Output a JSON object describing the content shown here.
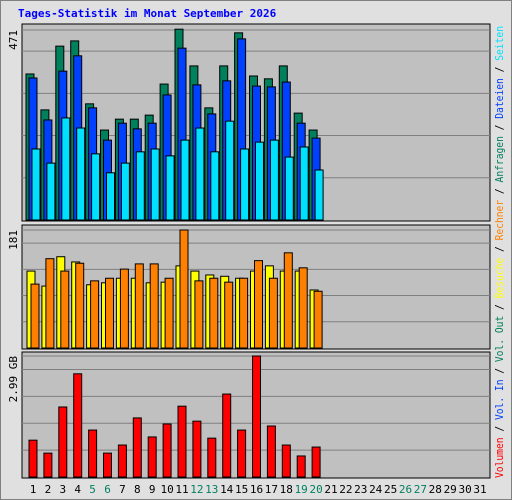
{
  "title": "Tages-Statistik im Monat September 2026",
  "categories": [
    "1",
    "2",
    "3",
    "4",
    "5",
    "6",
    "7",
    "8",
    "9",
    "10",
    "11",
    "12",
    "13",
    "14",
    "15",
    "16",
    "17",
    "18",
    "19",
    "20",
    "21",
    "22",
    "23",
    "24",
    "25",
    "26",
    "27",
    "28",
    "29",
    "30",
    "31"
  ],
  "weekends": [
    "5",
    "6",
    "12",
    "13",
    "19",
    "20",
    "26",
    "27"
  ],
  "weekend_color": "#008060",
  "separator": " / ",
  "chart_data": [
    {
      "type": "bar",
      "ylim": [
        0,
        471
      ],
      "yticks": [
        471
      ],
      "series": [
        {
          "name": "Anfragen",
          "color": "#00805c",
          "values": [
            362,
            273,
            431,
            444,
            288,
            223,
            250,
            250,
            260,
            337,
            473,
            382,
            278,
            382,
            464,
            357,
            350,
            382,
            265,
            223,
            null,
            null,
            null,
            null,
            null,
            null,
            null,
            null,
            null,
            null,
            null
          ]
        },
        {
          "name": "Dateien",
          "color": "#0040ff",
          "values": [
            352,
            248,
            369,
            407,
            278,
            198,
            240,
            226,
            240,
            310,
            426,
            335,
            263,
            345,
            449,
            332,
            330,
            342,
            240,
            203,
            null,
            null,
            null,
            null,
            null,
            null,
            null,
            null,
            null,
            null,
            null
          ]
        },
        {
          "name": "Seiten",
          "color": "#00e0ff",
          "values": [
            176,
            141,
            253,
            228,
            164,
            117,
            141,
            169,
            176,
            159,
            198,
            228,
            169,
            245,
            176,
            193,
            198,
            156,
            181,
            124,
            null,
            null,
            null,
            null,
            null,
            null,
            null,
            null,
            null,
            null,
            null
          ]
        }
      ]
    },
    {
      "type": "bar",
      "ylim": [
        0,
        181
      ],
      "yticks": [
        181
      ],
      "series": [
        {
          "name": "Besuche",
          "color": "#ffff00",
          "values": [
            118,
            95,
            140,
            132,
            97,
            100,
            107,
            107,
            100,
            101,
            126,
            118,
            112,
            110,
            107,
            118,
            126,
            118,
            118,
            89,
            null,
            null,
            null,
            null,
            null,
            null,
            null,
            null,
            null,
            null,
            null
          ]
        },
        {
          "name": "Rechner",
          "color": "#ff8000",
          "values": [
            98,
            137,
            118,
            130,
            103,
            107,
            121,
            129,
            129,
            107,
            181,
            103,
            107,
            101,
            107,
            134,
            107,
            146,
            123,
            87,
            null,
            null,
            null,
            null,
            null,
            null,
            null,
            null,
            null,
            null,
            null
          ]
        }
      ]
    },
    {
      "type": "bar",
      "ylim": [
        0,
        2.99
      ],
      "yticks": [
        {
          "value": 2.99,
          "label": "2.99 GB"
        }
      ],
      "series": [
        {
          "name": "Volumen",
          "color": "#ff0000",
          "values": [
            0.91,
            0.59,
            1.73,
            2.55,
            1.16,
            0.59,
            0.79,
            1.46,
            0.99,
            1.31,
            1.75,
            1.38,
            0.96,
            2.05,
            1.16,
            2.99,
            1.26,
            0.79,
            0.52,
            0.74,
            null,
            null,
            null,
            null,
            null,
            null,
            null,
            null,
            null,
            null,
            null
          ]
        },
        {
          "name": "Vol. In",
          "color": "#0040ff"
        },
        {
          "name": "Vol. Out",
          "color": "#00805c"
        }
      ]
    }
  ]
}
